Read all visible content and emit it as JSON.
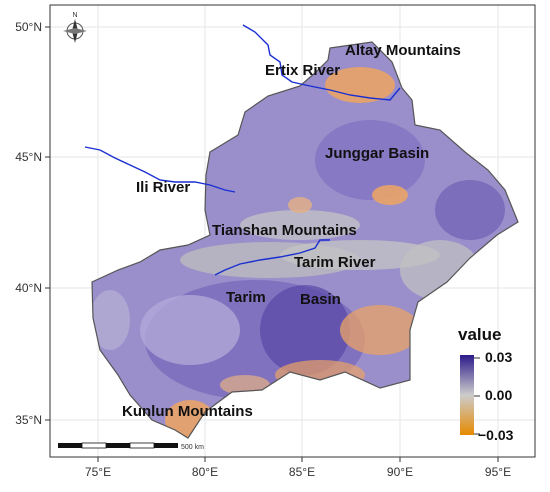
{
  "map": {
    "lat_labels": [
      "50°N",
      "45°N",
      "40°N",
      "35°N"
    ],
    "lon_labels": [
      "75°E",
      "80°E",
      "85°E",
      "90°E",
      "95°E"
    ],
    "regions": [
      {
        "id": "altay",
        "label": "Altay Mountains"
      },
      {
        "id": "ertix",
        "label": "Ertix River"
      },
      {
        "id": "junggar",
        "label": "Junggar Basin"
      },
      {
        "id": "ili",
        "label": "Ili River"
      },
      {
        "id": "tianshan",
        "label": "Tianshan Mountains"
      },
      {
        "id": "tarim-river",
        "label": "Tarim River"
      },
      {
        "id": "tarim-basin-1",
        "label": "Tarim"
      },
      {
        "id": "tarim-basin-2",
        "label": "Basin"
      },
      {
        "id": "kunlun",
        "label": "Kunlun Mountains"
      }
    ],
    "north_label": "N",
    "scale_label": "500 km",
    "legend": {
      "title": "value",
      "max_label": "0.03",
      "mid_label": "0.00",
      "min_label": "−0.03",
      "colors": {
        "high": "#2c1a8a",
        "mid": "#cccccc",
        "low": "#e68a00"
      }
    }
  },
  "colors": {
    "purple": "#8e80c4",
    "purple_dark": "#5a47a6",
    "gray": "#c6c6c6",
    "orange": "#e9a367",
    "river": "#1a2fd1"
  }
}
